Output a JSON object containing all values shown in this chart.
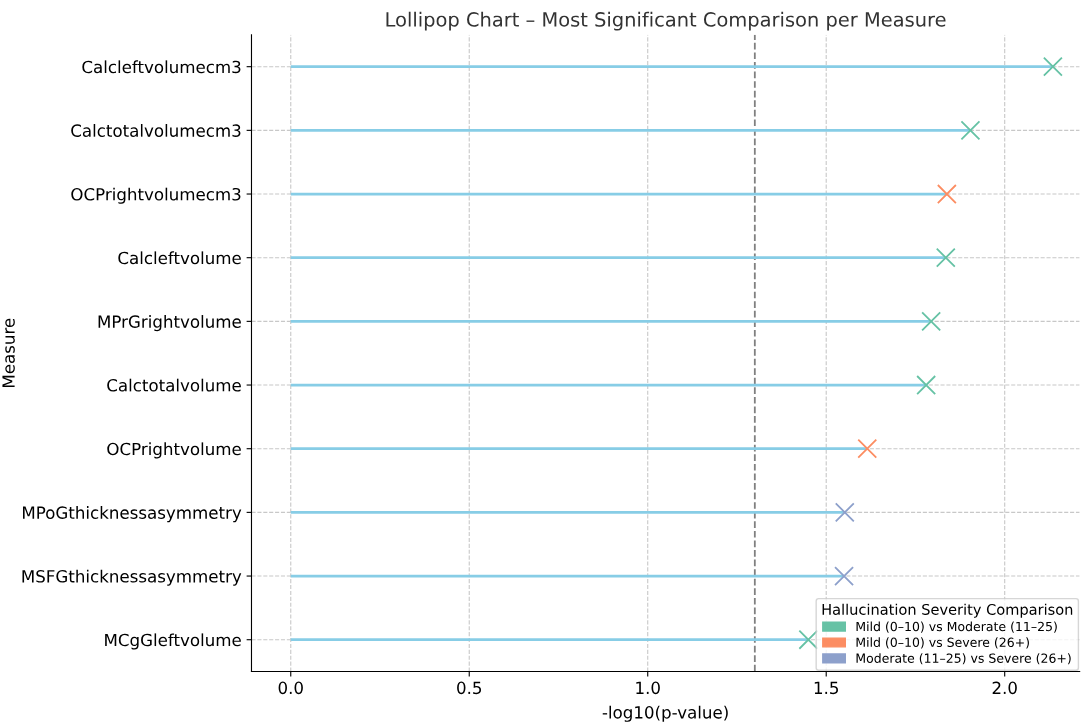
{
  "chart_data": {
    "type": "lollipop",
    "orientation": "horizontal",
    "title": "Lollipop Chart – Most Significant Comparison per Measure",
    "xlabel": "-log10(p-value)",
    "ylabel": "Measure",
    "legend_title": "Hallucination Severity Comparison",
    "categories": [
      "Calcleftvolumecm3",
      "Calctotalvolumecm3",
      "OCPrightvolumecm3",
      "Calcleftvolume",
      "MPrGrightvolume",
      "Calctotalvolume",
      "OCPrightvolume",
      "MPoGthicknessasymmetry",
      "MSFGthicknessasymmetry",
      "MCgGleftvolume"
    ],
    "series": [
      {
        "name": "Mild (0–10) vs Moderate (11–25)",
        "color": "#66c2a5",
        "values": [
          2.135,
          1.904,
          null,
          1.835,
          1.794,
          1.78,
          null,
          null,
          null,
          1.45
        ]
      },
      {
        "name": "Mild (0–10) vs Severe (26+)",
        "color": "#fc8d62",
        "values": [
          null,
          null,
          1.838,
          null,
          null,
          null,
          1.615,
          null,
          null,
          null
        ]
      },
      {
        "name": "Moderate (11–25) vs Severe (26+)",
        "color": "#8da0cb",
        "values": [
          null,
          null,
          null,
          null,
          null,
          null,
          null,
          1.552,
          1.55,
          null
        ]
      }
    ],
    "xlim": [
      -0.11,
      2.21
    ],
    "xticks": [
      {
        "value": 0,
        "label": "0.0"
      },
      {
        "value": 0.5,
        "label": "0.5"
      },
      {
        "value": 1,
        "label": "1.0"
      },
      {
        "value": 1.5,
        "label": "1.5"
      },
      {
        "value": 2,
        "label": "2.0"
      }
    ],
    "ref_lines": [
      {
        "axis": "x",
        "value": 1.3,
        "color": "#808080",
        "line_style": "dashed"
      }
    ],
    "grid": true,
    "legend": "bottom right",
    "marker": "cross"
  }
}
